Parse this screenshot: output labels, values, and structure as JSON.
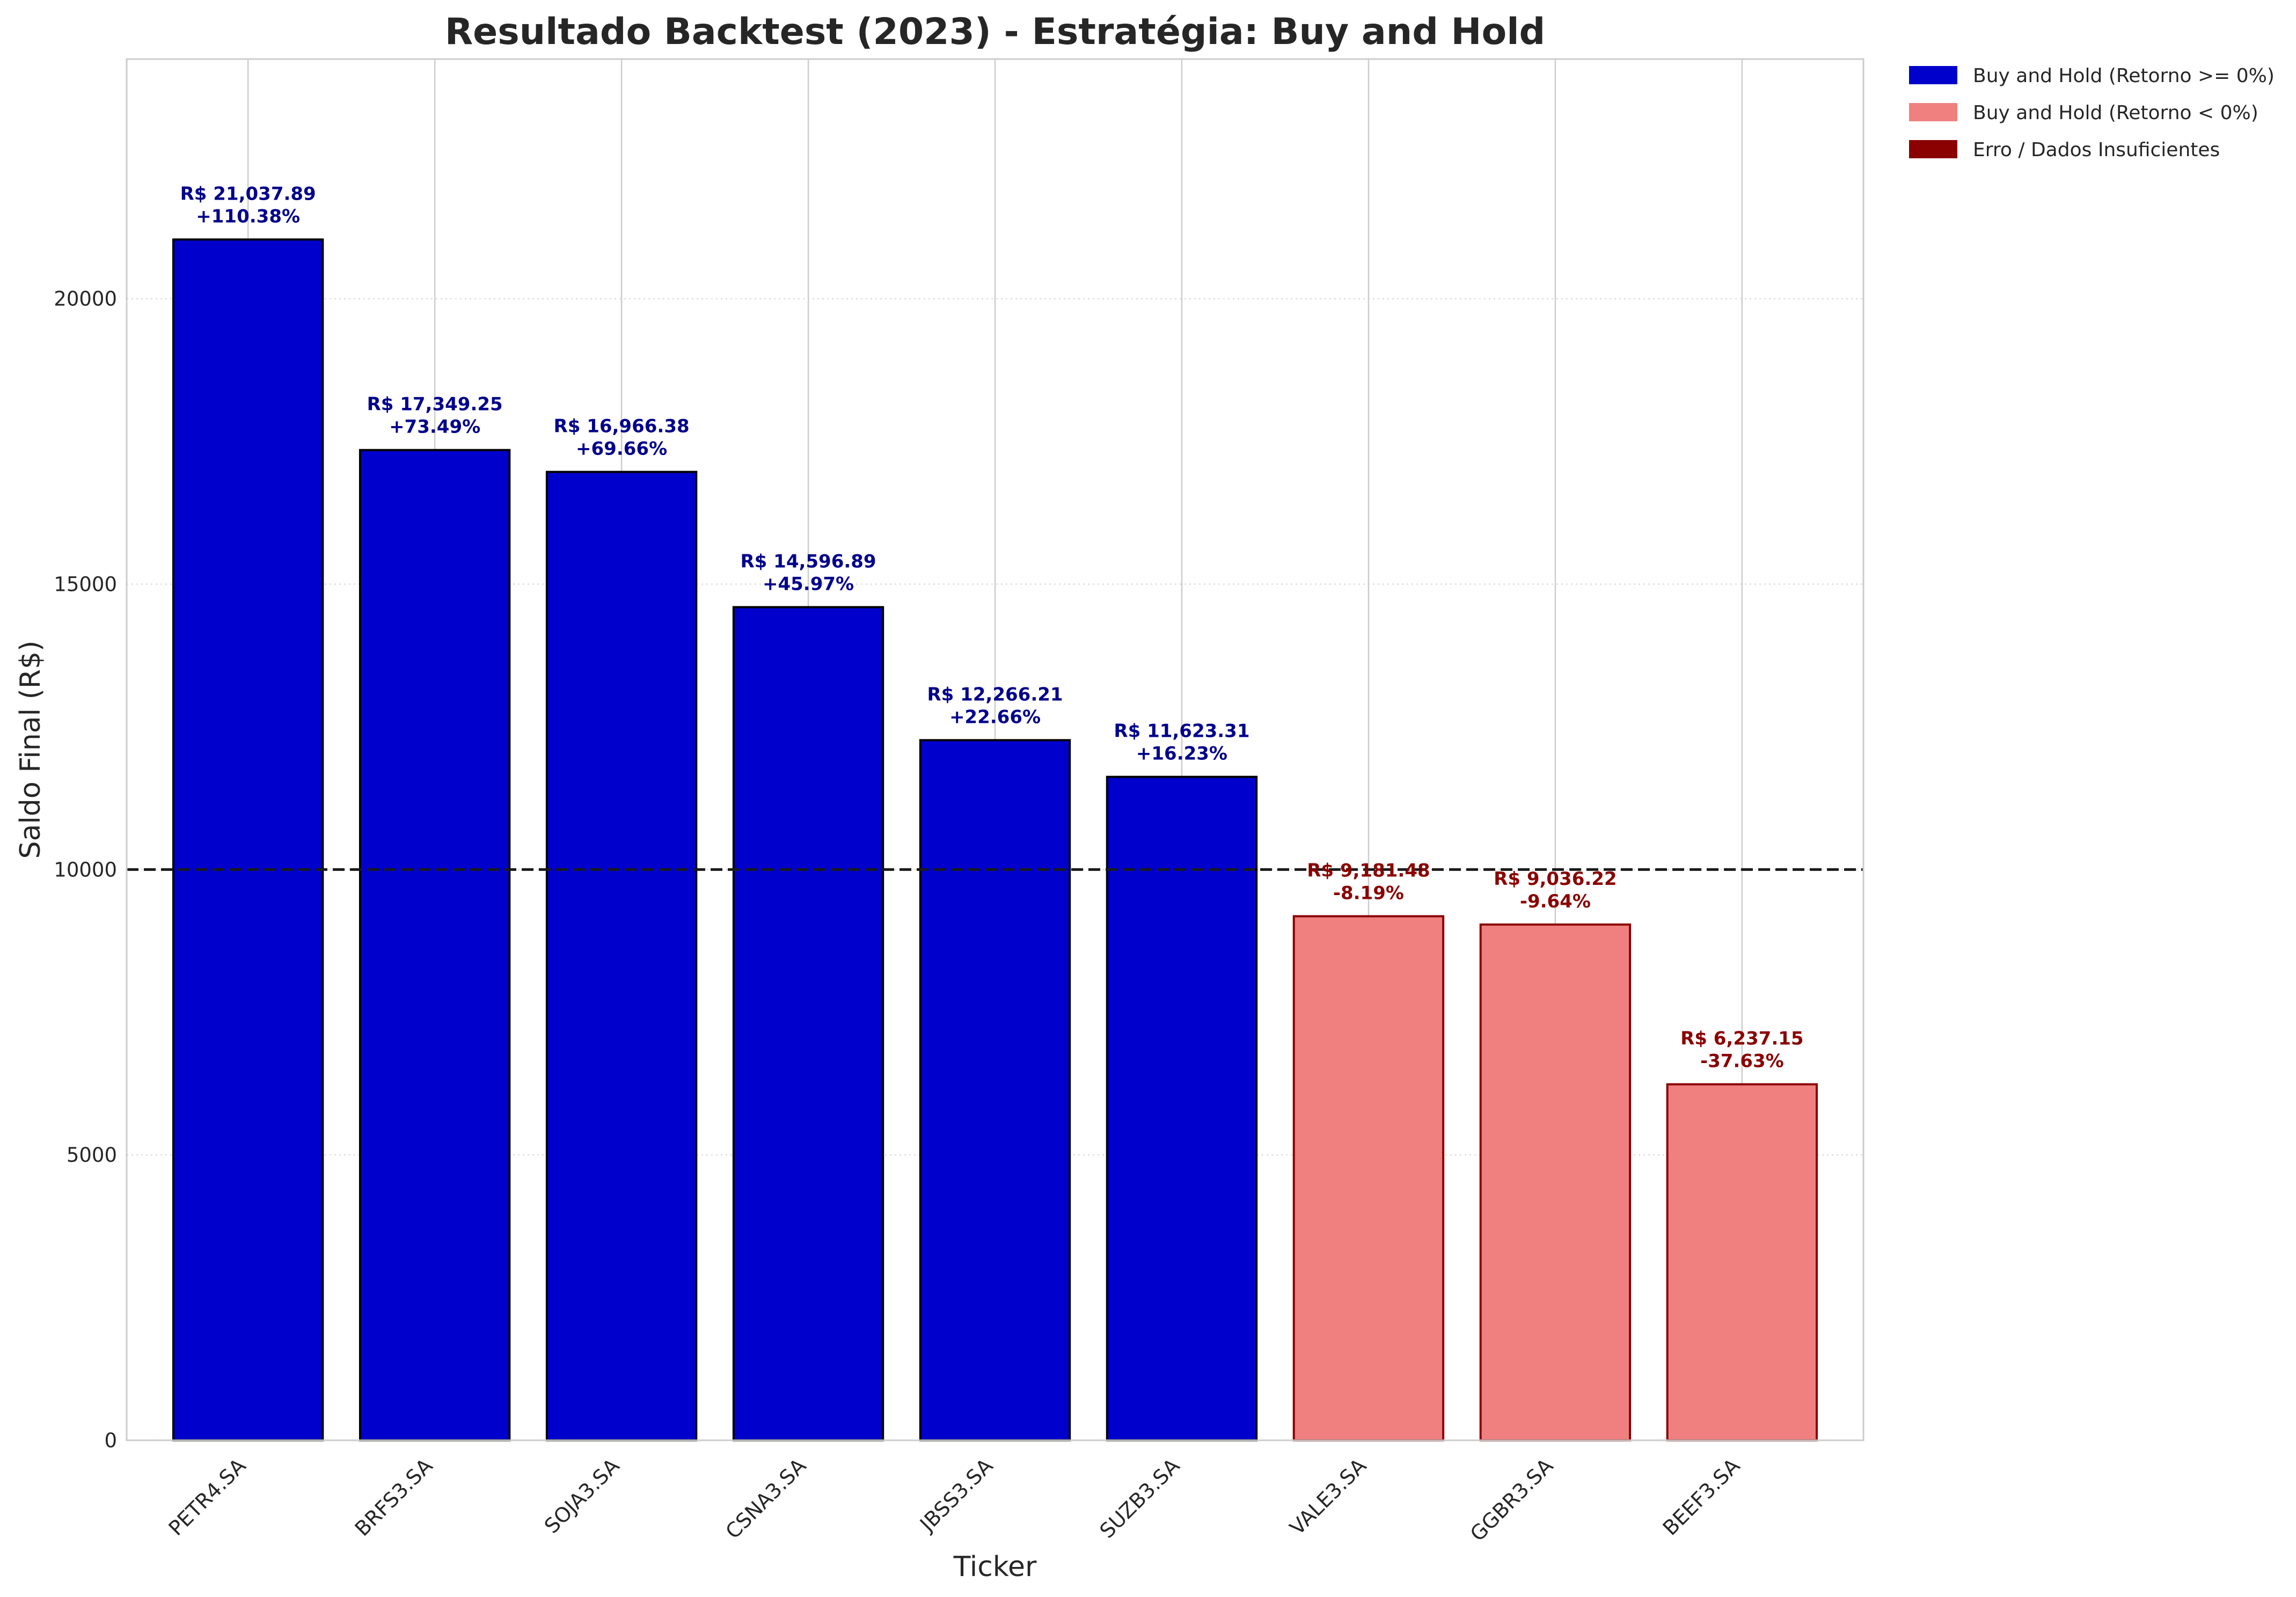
{
  "chart_data": {
    "type": "bar",
    "title": "Resultado Backtest (2023) - Estratégia: Buy and Hold",
    "xlabel": "Ticker",
    "ylabel": "Saldo Final (R$)",
    "ylim": [
      0,
      24200
    ],
    "yticks": [
      0,
      5000,
      10000,
      15000,
      20000
    ],
    "ytick_labels": [
      "0",
      "5000",
      "10000",
      "15000",
      "20000"
    ],
    "grid": true,
    "reference_line": 10000,
    "categories": [
      "PETR4.SA",
      "BRFS3.SA",
      "SOJA3.SA",
      "CSNA3.SA",
      "JBSS3.SA",
      "SUZB3.SA",
      "VALE3.SA",
      "GGBR3.SA",
      "BEEF3.SA"
    ],
    "values": [
      21037.89,
      17349.25,
      16966.38,
      14596.89,
      12266.21,
      11623.31,
      9181.48,
      9036.22,
      6237.15
    ],
    "value_labels": [
      "R$ 21,037.89",
      "R$ 17,349.25",
      "R$ 16,966.38",
      "R$ 14,596.89",
      "R$ 12,266.21",
      "R$ 11,623.31",
      "R$ 9,181.48",
      "R$ 9,036.22",
      "R$ 6,237.15"
    ],
    "return_labels": [
      "+110.38%",
      "+73.49%",
      "+69.66%",
      "+45.97%",
      "+22.66%",
      "+16.23%",
      "-8.19%",
      "-9.64%",
      "-37.63%"
    ],
    "bar_group": [
      0,
      0,
      0,
      0,
      0,
      0,
      1,
      1,
      1
    ],
    "legend_position": "outside-top-right",
    "legend": [
      {
        "label": "Buy and Hold (Retorno >= 0%)",
        "color": "#0000cd",
        "edge": "#0000cd"
      },
      {
        "label": "Buy and Hold (Retorno < 0%)",
        "color": "#f08080",
        "edge": "#f08080"
      },
      {
        "label": "Erro / Dados Insuficientes",
        "color": "#8b0000",
        "edge": "#8b0000"
      }
    ],
    "group_styles": [
      {
        "fill": "#0000cd",
        "edge": "#000000",
        "label_color": "#00008b"
      },
      {
        "fill": "#f08080",
        "edge": "#8b0000",
        "label_color": "#8b0000"
      }
    ]
  }
}
